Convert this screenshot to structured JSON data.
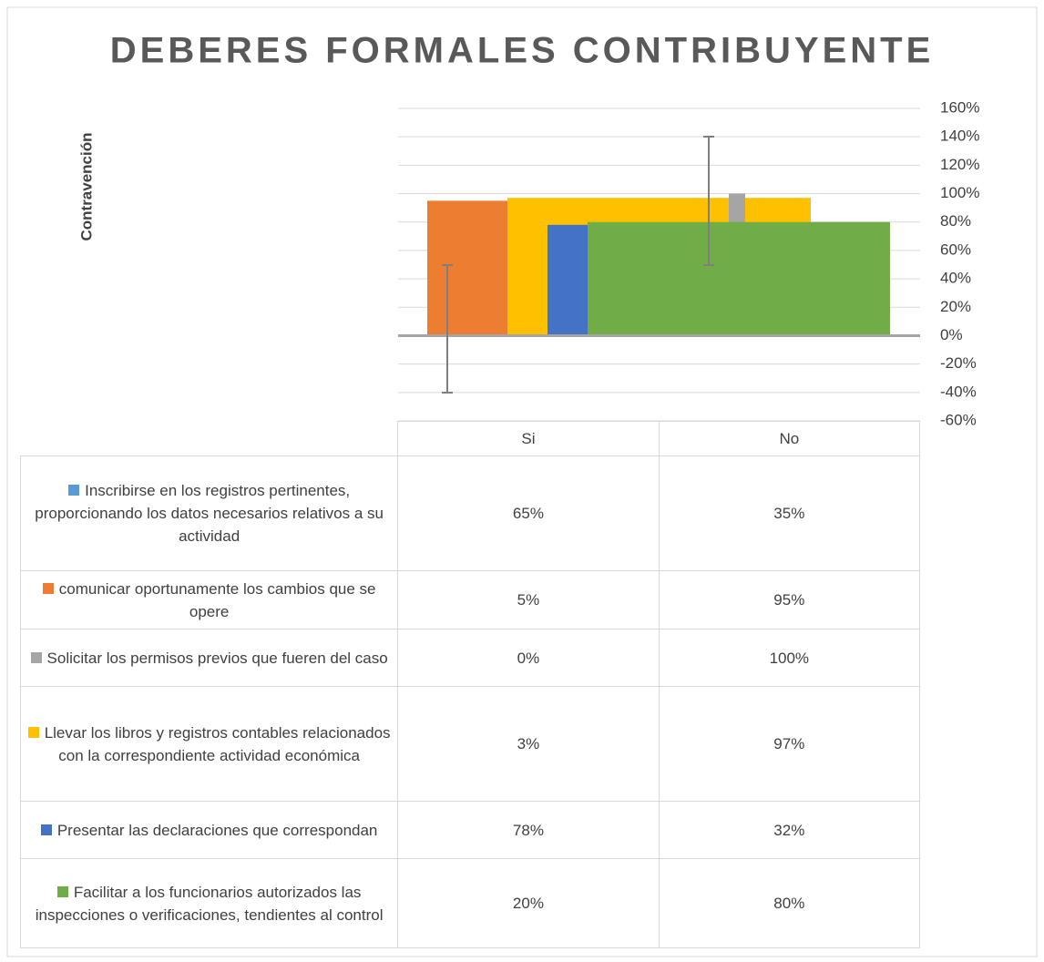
{
  "chart_data": {
    "type": "bar",
    "title": "DEBERES FORMALES CONTRIBUYENTE",
    "y_axis_label": "Contravención",
    "categories": [
      "Si",
      "No"
    ],
    "series": [
      {
        "name": "Inscribirse en los registros pertinentes, proporcionando los datos necesarios relativos a su actividad",
        "color": "#5b9bd5",
        "values": [
          65,
          35
        ],
        "value_labels": [
          "65%",
          "35%"
        ]
      },
      {
        "name": "comunicar oportunamente los cambios que se opere",
        "color": "#ed7d31",
        "values": [
          5,
          95
        ],
        "value_labels": [
          "5%",
          "95%"
        ]
      },
      {
        "name": "Solicitar los permisos previos que fueren del caso",
        "color": "#a5a5a5",
        "values": [
          0,
          100
        ],
        "value_labels": [
          "0%",
          "100%"
        ]
      },
      {
        "name": "Llevar los libros y registros contables relacionados con la correspondiente actividad económica",
        "color": "#ffc000",
        "values": [
          3,
          97
        ],
        "value_labels": [
          "3%",
          "97%"
        ]
      },
      {
        "name": "Presentar las declaraciones que correspondan",
        "color": "#4472c4",
        "values": [
          78,
          32
        ],
        "value_labels": [
          "78%",
          "32%"
        ]
      },
      {
        "name": "Facilitar a los funcionarios autorizados las inspecciones o verificaciones, tendientes al control",
        "color": "#70ad47",
        "values": [
          20,
          80
        ],
        "value_labels": [
          "20%",
          "80%"
        ]
      }
    ],
    "ylim": [
      -60,
      160
    ],
    "yticks": [
      {
        "value": -60,
        "label": "-60%"
      },
      {
        "value": -40,
        "label": "-40%"
      },
      {
        "value": -20,
        "label": "-20%"
      },
      {
        "value": 0,
        "label": "0%"
      },
      {
        "value": 20,
        "label": "20%"
      },
      {
        "value": 40,
        "label": "40%"
      },
      {
        "value": 60,
        "label": "60%"
      },
      {
        "value": 80,
        "label": "80%"
      },
      {
        "value": 100,
        "label": "100%"
      },
      {
        "value": 120,
        "label": "120%"
      },
      {
        "value": 140,
        "label": "140%"
      },
      {
        "value": 160,
        "label": "160%"
      }
    ],
    "grid": true
  }
}
